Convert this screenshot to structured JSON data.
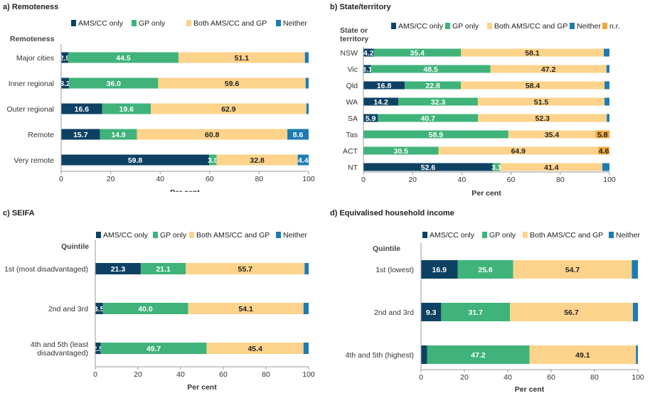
{
  "palette": {
    "ams": "#0d4163",
    "gp": "#3fb37a",
    "both": "#fdd38b",
    "neither": "#1c7bb3",
    "nr": "#f3a83c"
  },
  "chart_data": [
    {
      "type": "bar",
      "orientation": "horizontal-stacked",
      "title": "a) Remoteness",
      "category_label": "Remoteness",
      "xlabel": "Per cent",
      "xlim": [
        0,
        100
      ],
      "xticks": [
        "0",
        "20",
        "40",
        "60",
        "80",
        "100"
      ],
      "legend_position": "top",
      "categories": [
        "Major cities",
        "Inner regional",
        "Outer regional",
        "Remote",
        "Very remote"
      ],
      "series": [
        {
          "name": "AMS/CC only",
          "key": "ams",
          "values": [
            2.9,
            3.2,
            16.6,
            15.7,
            59.8
          ],
          "labels": [
            "2.9",
            "3.2",
            "16.6",
            "15.7",
            "59.8"
          ]
        },
        {
          "name": "GP only",
          "key": "gp",
          "values": [
            44.5,
            36.0,
            19.6,
            14.9,
            3.0
          ],
          "labels": [
            "44.5",
            "36.0",
            "19.6",
            "14.9",
            "3.0"
          ]
        },
        {
          "name": "Both AMS/CC and GP",
          "key": "both",
          "values": [
            51.1,
            59.6,
            62.9,
            60.8,
            32.8
          ],
          "labels": [
            "51.1",
            "59.6",
            "62.9",
            "60.8",
            "32.8"
          ]
        },
        {
          "name": "Neither",
          "key": "neither",
          "values": [
            1.5,
            1.2,
            0.9,
            8.6,
            4.4
          ],
          "labels": [
            "",
            "",
            "",
            "8.6",
            "4.4"
          ]
        }
      ]
    },
    {
      "type": "bar",
      "orientation": "horizontal-stacked",
      "title": "b) State/territory",
      "category_label": "State or territory",
      "xlabel": "Per cent",
      "xlim": [
        0,
        100
      ],
      "xticks": [
        "0",
        "20",
        "40",
        "60",
        "80",
        "100"
      ],
      "legend_position": "top",
      "categories": [
        "NSW",
        "Vic",
        "Qld",
        "WA",
        "SA",
        "Tas",
        "ACT",
        "NT"
      ],
      "series": [
        {
          "name": "AMS/CC only",
          "key": "ams",
          "values": [
            4.2,
            3.1,
            16.8,
            14.2,
            5.9,
            0,
            0,
            52.6
          ],
          "labels": [
            "4.2",
            "3.1",
            "16.8",
            "14.2",
            "5.9",
            "",
            "",
            "52.6"
          ]
        },
        {
          "name": "GP only",
          "key": "gp",
          "values": [
            35.4,
            48.5,
            22.8,
            32.3,
            40.7,
            58.9,
            30.5,
            3.1
          ],
          "labels": [
            "35.4",
            "48.5",
            "22.8",
            "32.3",
            "40.7",
            "58.9",
            "30.5",
            "3.1"
          ]
        },
        {
          "name": "Both AMS/CC and GP",
          "key": "both",
          "values": [
            58.1,
            47.2,
            58.4,
            51.5,
            52.3,
            35.4,
            64.9,
            41.4
          ],
          "labels": [
            "58.1",
            "47.2",
            "58.4",
            "51.5",
            "52.3",
            "35.4",
            "64.9",
            "41.4"
          ]
        },
        {
          "name": "Neither",
          "key": "neither",
          "values": [
            2.3,
            1.2,
            2.0,
            2.0,
            1.1,
            0,
            0,
            2.9
          ],
          "labels": [
            "",
            "",
            "",
            "",
            "",
            "",
            "",
            ""
          ]
        },
        {
          "name": "n.r.",
          "key": "nr",
          "values": [
            0,
            0,
            0,
            0,
            0,
            5.8,
            4.6,
            0
          ],
          "labels": [
            "",
            "",
            "",
            "",
            "",
            "5.8",
            "4.6",
            ""
          ]
        }
      ]
    },
    {
      "type": "bar",
      "orientation": "horizontal-stacked",
      "title": "c) SEIFA",
      "category_label": "Quintile",
      "xlabel": "Per cent",
      "xlim": [
        0,
        100
      ],
      "xticks": [
        "0",
        "20",
        "40",
        "60",
        "80",
        "100"
      ],
      "legend_position": "top",
      "categories": [
        [
          "1st (most disadvantaged)"
        ],
        [
          "2nd and 3rd"
        ],
        [
          "4th and 5th (least",
          "disadvantaged)"
        ]
      ],
      "series": [
        {
          "name": "AMS/CC only",
          "key": "ams",
          "values": [
            21.3,
            3.5,
            2.5
          ],
          "labels": [
            "21.3",
            "3.5",
            "2.5"
          ]
        },
        {
          "name": "GP only",
          "key": "gp",
          "values": [
            21.1,
            40.0,
            49.7
          ],
          "labels": [
            "21.1",
            "40.0",
            "49.7"
          ]
        },
        {
          "name": "Both AMS/CC and GP",
          "key": "both",
          "values": [
            55.7,
            54.1,
            45.4
          ],
          "labels": [
            "55.7",
            "54.1",
            "45.4"
          ]
        },
        {
          "name": "Neither",
          "key": "neither",
          "values": [
            1.9,
            2.4,
            2.4
          ],
          "labels": [
            "",
            "",
            ""
          ]
        }
      ]
    },
    {
      "type": "bar",
      "orientation": "horizontal-stacked",
      "title": "d) Equivalised household income",
      "category_label": "Quintile",
      "xlabel": "Per cent",
      "xlim": [
        0,
        100
      ],
      "xticks": [
        "0",
        "20",
        "40",
        "60",
        "80",
        "100"
      ],
      "legend_position": "top",
      "categories": [
        [
          "1st (lowest)"
        ],
        [
          "2nd and 3rd"
        ],
        [
          "4th and 5th (highest)"
        ]
      ],
      "series": [
        {
          "name": "AMS/CC only",
          "key": "ams",
          "values": [
            16.9,
            9.3,
            2.8
          ],
          "labels": [
            "16.9",
            "9.3",
            ""
          ]
        },
        {
          "name": "GP only",
          "key": "gp",
          "values": [
            25.6,
            31.7,
            47.2
          ],
          "labels": [
            "25.6",
            "31.7",
            "47.2"
          ]
        },
        {
          "name": "Both AMS/CC and GP",
          "key": "both",
          "values": [
            54.7,
            56.7,
            49.1
          ],
          "labels": [
            "54.7",
            "56.7",
            "49.1"
          ]
        },
        {
          "name": "Neither",
          "key": "neither",
          "values": [
            2.8,
            2.3,
            0.9
          ],
          "labels": [
            "",
            "",
            ""
          ]
        }
      ]
    }
  ]
}
